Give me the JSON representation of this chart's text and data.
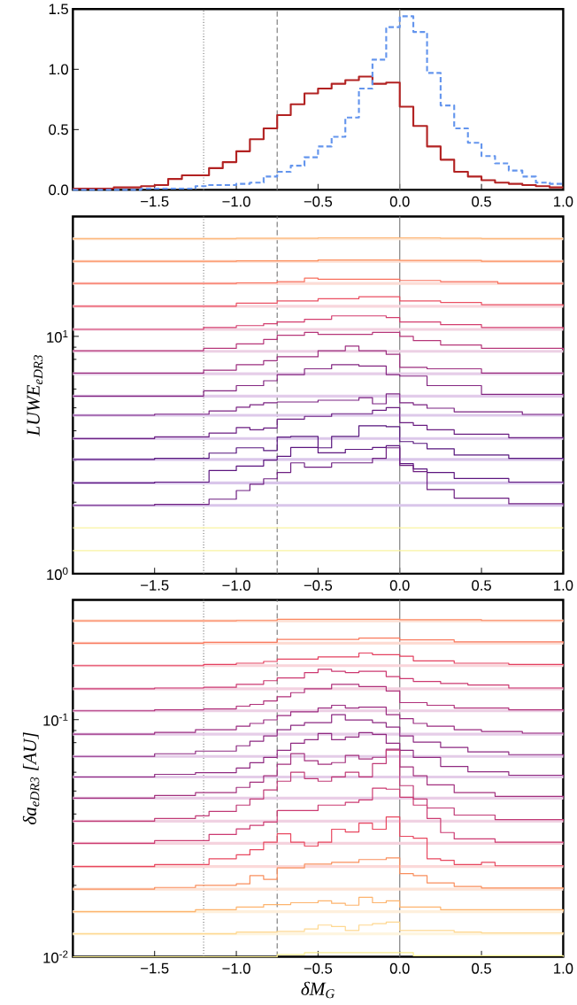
{
  "chart_data": [
    {
      "type": "histogram",
      "xlim": [
        -2,
        1
      ],
      "ylim": [
        0,
        1.5
      ],
      "xticks": [
        {
          "value": -1.5,
          "label": "−1.5"
        },
        {
          "value": -1,
          "label": "−1.0"
        },
        {
          "value": -0.5,
          "label": "−0.5"
        },
        {
          "value": 0,
          "label": "0.0"
        },
        {
          "value": 0.5,
          "label": "0.5"
        },
        {
          "value": 1,
          "label": "1.0"
        }
      ],
      "yticks": [
        {
          "value": 0,
          "label": "0.0"
        },
        0.5,
        {
          "value": 1,
          "label": "1.0"
        },
        1.5
      ],
      "bins": [
        -2,
        -1.917,
        -1.833,
        -1.75,
        -1.667,
        -1.583,
        -1.5,
        -1.417,
        -1.333,
        -1.25,
        -1.167,
        -1.083,
        -1,
        -0.917,
        -0.833,
        -0.75,
        -0.667,
        -0.583,
        -0.5,
        -0.417,
        -0.333,
        -0.25,
        -0.167,
        -0.083,
        0,
        0.083,
        0.167,
        0.25,
        0.333,
        0.417,
        0.5,
        0.583,
        0.667,
        0.75,
        0.833,
        0.917,
        1
      ],
      "series": [
        {
          "color": "#b22222",
          "line_style": "solid",
          "values": [
            0.01,
            0.01,
            0.01,
            0.02,
            0.02,
            0.03,
            0.04,
            0.09,
            0.12,
            0.12,
            0.18,
            0.23,
            0.32,
            0.42,
            0.51,
            0.62,
            0.71,
            0.8,
            0.84,
            0.88,
            0.91,
            0.94,
            0.88,
            0.89,
            0.69,
            0.53,
            0.36,
            0.25,
            0.15,
            0.11,
            0.08,
            0.06,
            0.05,
            0.04,
            0.03,
            0.02
          ]
        },
        {
          "color": "#6495ed",
          "line_style": "dashed",
          "values": [
            0,
            0,
            0,
            0,
            0,
            0.01,
            0.01,
            0.01,
            0.01,
            0.03,
            0.04,
            0.04,
            0.05,
            0.06,
            0.11,
            0.15,
            0.2,
            0.27,
            0.36,
            0.44,
            0.6,
            0.84,
            1.08,
            1.35,
            1.44,
            1.31,
            0.97,
            0.7,
            0.51,
            0.39,
            0.28,
            0.22,
            0.16,
            0.11,
            0.06,
            0.05
          ]
        }
      ],
      "ref_lines": [
        {
          "axis": "x",
          "value": -1.2,
          "color": "#808080",
          "line_style": "dotted"
        },
        {
          "axis": "x",
          "value": -0.75,
          "color": "#808080",
          "line_style": "dashed"
        },
        {
          "axis": "x",
          "value": 0,
          "color": "#808080",
          "line_style": "solid"
        }
      ]
    },
    {
      "type": "step",
      "log": "y",
      "ylabel": "LUWE$_{eDR3}$",
      "xlim": [
        -2,
        1
      ],
      "ylim": [
        1,
        32
      ],
      "xticks": [
        {
          "value": -1.5,
          "label": "−1.5"
        },
        {
          "value": -1,
          "label": "−1.0"
        },
        {
          "value": -0.5,
          "label": "−0.5"
        },
        {
          "value": 0,
          "label": "0.0"
        },
        {
          "value": 0.5,
          "label": "0.5"
        },
        {
          "value": 1,
          "label": "1.0"
        }
      ],
      "yticks": [
        {
          "value": 1,
          "label": "10$^{0}$"
        },
        {
          "value": 10,
          "label": "10$^{1}$"
        }
      ],
      "series": [
        {
          "color": "#fdb97d",
          "x": [
            -2,
            -1,
            -0.5,
            0.25,
            0.5,
            1
          ],
          "values": [
            25.8,
            25.9,
            26.0,
            25.9,
            25.8,
            25.8
          ]
        },
        {
          "color": "#fc8f5e",
          "x": [
            -2,
            -1,
            -0.5,
            0,
            0.5,
            1
          ],
          "values": [
            20.7,
            20.8,
            21.0,
            20.9,
            20.7,
            20.7
          ]
        },
        {
          "color": "#f86f5c",
          "x": [
            -2,
            -1,
            -0.75,
            -0.583,
            -0.5,
            0,
            0.25,
            0.6,
            1
          ],
          "values": [
            16.7,
            16.8,
            17.0,
            17.6,
            17.4,
            17.2,
            17.0,
            16.7,
            16.7
          ]
        },
        {
          "color": "#ea4f62",
          "x": [
            -2,
            -1,
            -0.75,
            -0.5,
            -0.25,
            0,
            0.25,
            0.5,
            1
          ],
          "values": [
            13.4,
            13.8,
            14.1,
            14.4,
            14.7,
            14.1,
            13.9,
            13.6,
            13.4
          ]
        },
        {
          "color": "#d33d6e",
          "x": [
            -2,
            -1.2,
            -1,
            -0.833,
            -0.75,
            -0.583,
            -0.417,
            -0.083,
            0,
            0.25,
            0.5,
            1
          ],
          "values": [
            10.7,
            10.9,
            11.1,
            11.3,
            11.5,
            11.8,
            12.2,
            12.0,
            11.5,
            11.2,
            10.9,
            10.7
          ]
        },
        {
          "color": "#b63679",
          "x": [
            -2,
            -1.2,
            -1,
            -0.833,
            -0.75,
            -0.583,
            -0.5,
            -0.333,
            -0.167,
            0,
            0.083,
            0.25,
            0.5,
            1
          ],
          "values": [
            8.7,
            8.9,
            9.3,
            9.7,
            10.1,
            10.4,
            10.2,
            10.2,
            10.4,
            10.0,
            9.6,
            9.2,
            8.9,
            8.7
          ]
        },
        {
          "color": "#9c2e7f",
          "x": [
            -2,
            -1.2,
            -1,
            -0.833,
            -0.75,
            -0.5,
            -0.333,
            -0.25,
            -0.083,
            0,
            0.167,
            0.5,
            1
          ],
          "values": [
            7.0,
            7.2,
            7.6,
            7.9,
            8.2,
            8.7,
            9.1,
            8.7,
            8.4,
            7.4,
            7.3,
            7.0,
            7.0
          ]
        },
        {
          "color": "#832681",
          "x": [
            -2,
            -1.2,
            -1,
            -0.833,
            -0.75,
            -0.583,
            -0.417,
            -0.25,
            -0.083,
            0,
            0.167,
            0.5,
            1
          ],
          "values": [
            5.6,
            5.9,
            6.2,
            6.5,
            6.9,
            7.3,
            7.6,
            7.5,
            6.9,
            6.8,
            6.2,
            5.7,
            5.6
          ]
        },
        {
          "color": "#7b2382",
          "x": [
            -2,
            -1.5,
            -1.167,
            -1,
            -0.917,
            -0.833,
            -0.75,
            -0.5,
            -0.25,
            -0.167,
            -0.083,
            0,
            0.083,
            0.167,
            0.333,
            0.75,
            1
          ],
          "values": [
            4.65,
            4.7,
            4.85,
            5.03,
            5.15,
            5.25,
            5.29,
            5.38,
            5.52,
            5.2,
            5.72,
            5.25,
            5.15,
            4.98,
            4.81,
            4.69,
            4.65
          ]
        },
        {
          "color": "#6a1d81",
          "x": [
            -2,
            -1.5,
            -1.167,
            -1,
            -0.917,
            -0.833,
            -0.75,
            -0.583,
            -0.417,
            -0.167,
            -0.083,
            0,
            0.083,
            0.167,
            0.333,
            0.667,
            1
          ],
          "values": [
            3.71,
            3.77,
            3.91,
            4.13,
            4.04,
            4.11,
            4.48,
            4.6,
            4.72,
            4.88,
            5.01,
            4.33,
            4.22,
            4.04,
            3.87,
            3.74,
            3.71
          ]
        },
        {
          "color": "#56147d",
          "x": [
            -2,
            -1.5,
            -1.167,
            -1,
            -0.833,
            -0.75,
            -0.667,
            -0.5,
            -0.417,
            -0.25,
            -0.083,
            0,
            0.083,
            0.167,
            0.333,
            0.667,
            1
          ],
          "values": [
            3.03,
            3.06,
            3.22,
            3.39,
            3.3,
            3.76,
            3.79,
            3.39,
            3.79,
            4.2,
            4.16,
            3.6,
            3.54,
            3.36,
            3.16,
            3.06,
            3.03
          ]
        },
        {
          "color": "#5c167f",
          "x": [
            -2,
            -1.5,
            -1.167,
            -1,
            -0.833,
            -0.75,
            -0.667,
            -0.5,
            -0.333,
            -0.167,
            -0.083,
            0,
            0.083,
            0.167,
            0.333,
            0.667,
            1
          ],
          "values": [
            2.41,
            2.43,
            2.72,
            2.84,
            3.01,
            3.12,
            3.4,
            3.23,
            3.34,
            3.4,
            3.46,
            2.91,
            2.76,
            2.67,
            2.52,
            2.43,
            2.41
          ]
        },
        {
          "color": "#6e1f81",
          "x": [
            -2,
            -1.5,
            -1.167,
            -1,
            -0.917,
            -0.833,
            -0.75,
            -0.667,
            -0.583,
            -0.417,
            -0.167,
            -0.083,
            0,
            0.083,
            0.167,
            0.333,
            0.667,
            1
          ],
          "values": [
            1.94,
            1.96,
            2.06,
            2.24,
            2.38,
            2.51,
            2.67,
            2.93,
            2.81,
            2.93,
            3.06,
            3.39,
            2.86,
            2.69,
            2.26,
            2.08,
            1.97,
            1.94
          ]
        },
        {
          "color": "#f9f3a0",
          "x": [
            -2,
            1
          ],
          "values": [
            1.56,
            1.56
          ]
        },
        {
          "color": "#f9f3a0",
          "x": [
            -2,
            1
          ],
          "values": [
            1.25,
            1.25
          ]
        }
      ],
      "ref_lines": [
        {
          "axis": "x",
          "value": -1.2,
          "color": "#808080",
          "line_style": "dotted"
        },
        {
          "axis": "x",
          "value": -0.75,
          "color": "#808080",
          "line_style": "dashed"
        },
        {
          "axis": "x",
          "value": 0,
          "color": "#808080",
          "line_style": "solid"
        },
        {
          "axis": "y",
          "value": 25.8,
          "color": "#fde8d8"
        },
        {
          "axis": "y",
          "value": 20.7,
          "color": "#fde1d5"
        },
        {
          "axis": "y",
          "value": 16.7,
          "color": "#fcdcd6"
        },
        {
          "axis": "y",
          "value": 13.4,
          "color": "#f8d6dc"
        },
        {
          "axis": "y",
          "value": 10.7,
          "color": "#f2d2e0"
        },
        {
          "axis": "y",
          "value": 8.65,
          "color": "#ecd0e4"
        },
        {
          "axis": "y",
          "value": 6.96,
          "color": "#e6cde8"
        },
        {
          "axis": "y",
          "value": 5.6,
          "color": "#e2ccea"
        },
        {
          "axis": "y",
          "value": 4.65,
          "color": "#ddc9ea"
        },
        {
          "axis": "y",
          "value": 3.71,
          "color": "#dcc8ea"
        },
        {
          "axis": "y",
          "value": 3.03,
          "color": "#dac7ea"
        },
        {
          "axis": "y",
          "value": 2.41,
          "color": "#d9c6ea"
        },
        {
          "axis": "y",
          "value": 1.94,
          "color": "#d9c6ea"
        }
      ]
    },
    {
      "type": "step",
      "log": "y",
      "ylabel": "δa$_{eDR3}$ [AU]",
      "xlabel": "δM$_{G}$",
      "xlim": [
        -2,
        1
      ],
      "ylim": [
        0.01,
        0.32
      ],
      "xticks": [
        {
          "value": -1.5,
          "label": "−1.5"
        },
        {
          "value": -1,
          "label": "−1.0"
        },
        {
          "value": -0.5,
          "label": "−0.5"
        },
        {
          "value": 0,
          "label": "0.0"
        },
        {
          "value": 0.5,
          "label": "0.5"
        },
        {
          "value": 1,
          "label": "1.0"
        }
      ],
      "yticks": [
        {
          "value": 0.01,
          "label": "10$^{-2}$"
        },
        {
          "value": 0.1,
          "label": "10$^{-1}$"
        }
      ],
      "series": [
        {
          "color": "#fb8761",
          "x": [
            -2,
            -1,
            -0.75,
            0,
            0.5,
            1
          ],
          "values": [
            0.261,
            0.262,
            0.265,
            0.264,
            0.262,
            0.261
          ]
        },
        {
          "color": "#f9795d",
          "x": [
            -2,
            -1.2,
            -0.75,
            -0.25,
            0,
            0.333,
            1
          ],
          "values": [
            0.21,
            0.212,
            0.218,
            0.221,
            0.217,
            0.213,
            0.21
          ]
        },
        {
          "color": "#e4405f",
          "x": [
            -2,
            -1.2,
            -1,
            -0.833,
            -0.75,
            -0.5,
            -0.25,
            -0.167,
            0,
            0.083,
            0.333,
            0.667,
            1
          ],
          "values": [
            0.169,
            0.171,
            0.173,
            0.176,
            0.18,
            0.184,
            0.191,
            0.188,
            0.185,
            0.177,
            0.173,
            0.171,
            0.169
          ]
        },
        {
          "color": "#cc3870",
          "x": [
            -2,
            -1.5,
            -1.2,
            -1,
            -0.833,
            -0.75,
            -0.583,
            -0.5,
            -0.417,
            -0.333,
            -0.25,
            -0.083,
            0,
            0.083,
            0.25,
            0.417,
            0.667,
            1
          ],
          "values": [
            0.135,
            0.136,
            0.137,
            0.141,
            0.146,
            0.15,
            0.158,
            0.163,
            0.16,
            0.158,
            0.16,
            0.152,
            0.149,
            0.145,
            0.142,
            0.14,
            0.136,
            0.135
          ]
        },
        {
          "color": "#b0307a",
          "x": [
            -2,
            -1.5,
            -1.2,
            -1,
            -0.917,
            -0.833,
            -0.75,
            -0.667,
            -0.583,
            -0.417,
            -0.25,
            -0.083,
            0,
            0.167,
            0.333,
            0.667,
            1
          ],
          "values": [
            0.109,
            0.11,
            0.111,
            0.114,
            0.116,
            0.12,
            0.125,
            0.13,
            0.135,
            0.141,
            0.138,
            0.132,
            0.118,
            0.115,
            0.112,
            0.11,
            0.109
          ]
        },
        {
          "color": "#9a2b80",
          "x": [
            -2,
            -1.5,
            -1.25,
            -1,
            -0.917,
            -0.833,
            -0.75,
            -0.667,
            -0.5,
            -0.417,
            -0.333,
            -0.25,
            -0.083,
            0,
            0.083,
            0.167,
            0.333,
            0.5,
            0.75,
            1
          ],
          "values": [
            0.0869,
            0.0884,
            0.0907,
            0.0939,
            0.0964,
            0.0998,
            0.104,
            0.108,
            0.112,
            0.115,
            0.112,
            0.113,
            0.105,
            0.101,
            0.0964,
            0.0939,
            0.0907,
            0.0892,
            0.0877,
            0.0869
          ]
        },
        {
          "color": "#8c2981",
          "x": [
            -2,
            -1.5,
            -1.25,
            -1,
            -0.917,
            -0.833,
            -0.75,
            -0.667,
            -0.583,
            -0.417,
            -0.333,
            -0.167,
            -0.083,
            0,
            0.083,
            0.25,
            0.417,
            0.667,
            1
          ],
          "values": [
            0.07,
            0.0718,
            0.0737,
            0.0776,
            0.0811,
            0.0854,
            0.0907,
            0.0947,
            0.0972,
            0.105,
            0.0997,
            0.0972,
            0.0931,
            0.0854,
            0.0804,
            0.0763,
            0.0731,
            0.0712,
            0.07
          ]
        },
        {
          "color": "#8f2a81",
          "x": [
            -2,
            -1.5,
            -1.25,
            -1,
            -0.917,
            -0.833,
            -0.75,
            -0.667,
            -0.583,
            -0.5,
            -0.417,
            -0.333,
            -0.25,
            -0.167,
            -0.083,
            0,
            0.083,
            0.25,
            0.417,
            0.667,
            1
          ],
          "values": [
            0.0573,
            0.0588,
            0.0598,
            0.0625,
            0.0658,
            0.0693,
            0.0743,
            0.0795,
            0.0823,
            0.0874,
            0.0823,
            0.0845,
            0.0882,
            0.0867,
            0.0795,
            0.0743,
            0.0693,
            0.0635,
            0.0603,
            0.0583,
            0.0573
          ]
        },
        {
          "color": "#a3307e",
          "x": [
            -2,
            -1.5,
            -1.25,
            -1,
            -0.917,
            -0.833,
            -0.75,
            -0.667,
            -0.583,
            -0.5,
            -0.417,
            -0.333,
            -0.25,
            -0.167,
            -0.083,
            0,
            0.083,
            0.167,
            0.333,
            0.583,
            1
          ],
          "values": [
            0.0467,
            0.0479,
            0.0492,
            0.0518,
            0.0545,
            0.058,
            0.0648,
            0.0719,
            0.0671,
            0.0648,
            0.0659,
            0.0707,
            0.0683,
            0.0694,
            0.0751,
            0.0632,
            0.058,
            0.0531,
            0.0492,
            0.0475,
            0.0467
          ]
        },
        {
          "color": "#c03a76",
          "x": [
            -2,
            -1.5,
            -1.25,
            -1.167,
            -1,
            -0.917,
            -0.833,
            -0.75,
            -0.667,
            -0.583,
            -0.5,
            -0.417,
            -0.333,
            -0.25,
            -0.167,
            -0.083,
            0,
            0.083,
            0.167,
            0.333,
            0.583,
            1
          ],
          "values": [
            0.0373,
            0.0383,
            0.0393,
            0.041,
            0.0436,
            0.0463,
            0.0505,
            0.055,
            0.06,
            0.0564,
            0.055,
            0.0574,
            0.06,
            0.0574,
            0.0653,
            0.0744,
            0.0527,
            0.0463,
            0.0424,
            0.0396,
            0.0379,
            0.0373
          ]
        },
        {
          "color": "#cc3a71",
          "x": [
            -2,
            -1.5,
            -1.167,
            -1,
            -0.917,
            -0.833,
            -0.75,
            -0.5,
            -0.333,
            -0.25,
            -0.167,
            -0.083,
            0,
            0.083,
            0.167,
            0.25,
            0.333,
            0.583,
            1
          ],
          "values": [
            0.0301,
            0.0309,
            0.0328,
            0.0346,
            0.0358,
            0.037,
            0.0414,
            0.0436,
            0.0448,
            0.0459,
            0.0514,
            0.0509,
            0.0471,
            0.0436,
            0.0383,
            0.0334,
            0.0314,
            0.0304,
            0.0301
          ]
        },
        {
          "color": "#e8475f",
          "x": [
            -2,
            -1.5,
            -1.167,
            -1,
            -0.917,
            -0.833,
            -0.75,
            -0.667,
            -0.583,
            -0.5,
            -0.417,
            -0.333,
            -0.25,
            -0.167,
            -0.083,
            0,
            0.083,
            0.167,
            0.25,
            0.333,
            0.5,
            0.583,
            1
          ],
          "values": [
            0.024,
            0.0245,
            0.0259,
            0.0269,
            0.0283,
            0.0304,
            0.033,
            0.0304,
            0.0293,
            0.0304,
            0.0345,
            0.0336,
            0.0366,
            0.0345,
            0.0389,
            0.0322,
            0.0316,
            0.0259,
            0.0255,
            0.0245,
            0.025,
            0.0242,
            0.024
          ]
        },
        {
          "color": "#f98e5c",
          "x": [
            -2,
            -1.5,
            -1.25,
            -1,
            -0.917,
            -0.833,
            -0.75,
            -0.583,
            -0.417,
            -0.25,
            -0.083,
            0,
            0.083,
            0.167,
            0.333,
            0.5,
            1
          ],
          "values": [
            0.0193,
            0.0196,
            0.02,
            0.0203,
            0.022,
            0.0212,
            0.0237,
            0.0246,
            0.025,
            0.0257,
            0.0261,
            0.0224,
            0.022,
            0.0205,
            0.0198,
            0.0195,
            0.0193
          ]
        },
        {
          "color": "#fdb46e",
          "x": [
            -2,
            -1.25,
            -1,
            -0.833,
            -0.667,
            -0.5,
            -0.417,
            -0.333,
            -0.25,
            -0.167,
            -0.083,
            0,
            0.25,
            1
          ],
          "values": [
            0.0155,
            0.0158,
            0.0162,
            0.0166,
            0.0169,
            0.0172,
            0.0168,
            0.0165,
            0.0178,
            0.0169,
            0.0172,
            0.0162,
            0.0158,
            0.0155
          ]
        },
        {
          "color": "#fed890",
          "x": [
            -2,
            -1,
            -0.75,
            -0.583,
            -0.5,
            -0.417,
            -0.333,
            -0.25,
            -0.167,
            -0.083,
            0,
            0.333,
            0.5,
            1
          ],
          "values": [
            0.0125,
            0.0127,
            0.0128,
            0.0131,
            0.0136,
            0.0134,
            0.0129,
            0.0136,
            0.0138,
            0.014,
            0.0129,
            0.0127,
            0.0126,
            0.0125
          ]
        },
        {
          "color": "#f8ec8c",
          "x": [
            -2,
            -0.75,
            -0.583,
            -0.25,
            0,
            0.083,
            1
          ],
          "values": [
            0.01,
            0.0102,
            0.0104,
            0.0104,
            0.0104,
            0.0101,
            0.01
          ]
        }
      ],
      "ref_lines": [
        {
          "axis": "x",
          "value": -1.2,
          "color": "#808080",
          "line_style": "dotted"
        },
        {
          "axis": "x",
          "value": -0.75,
          "color": "#808080",
          "line_style": "dashed"
        },
        {
          "axis": "x",
          "value": 0,
          "color": "#808080",
          "line_style": "solid"
        },
        {
          "axis": "y",
          "value": 0.261,
          "color": "#fde1d5"
        },
        {
          "axis": "y",
          "value": 0.21,
          "color": "#fddcd3"
        },
        {
          "axis": "y",
          "value": 0.169,
          "color": "#f9d5da"
        },
        {
          "axis": "y",
          "value": 0.135,
          "color": "#f3d2e0"
        },
        {
          "axis": "y",
          "value": 0.109,
          "color": "#eccfe4"
        },
        {
          "axis": "y",
          "value": 0.0869,
          "color": "#e6cde8"
        },
        {
          "axis": "y",
          "value": 0.07,
          "color": "#e4cce8"
        },
        {
          "axis": "y",
          "value": 0.0573,
          "color": "#e4cce8"
        },
        {
          "axis": "y",
          "value": 0.0467,
          "color": "#e9cee6"
        },
        {
          "axis": "y",
          "value": 0.0373,
          "color": "#f0d1e2"
        },
        {
          "axis": "y",
          "value": 0.0301,
          "color": "#f5d3dd"
        },
        {
          "axis": "y",
          "value": 0.024,
          "color": "#fbd9d9"
        },
        {
          "axis": "y",
          "value": 0.0193,
          "color": "#fde3d6"
        },
        {
          "axis": "y",
          "value": 0.0155,
          "color": "#fef0dc"
        },
        {
          "axis": "y",
          "value": 0.0125,
          "color": "#fef5e0"
        }
      ]
    }
  ]
}
